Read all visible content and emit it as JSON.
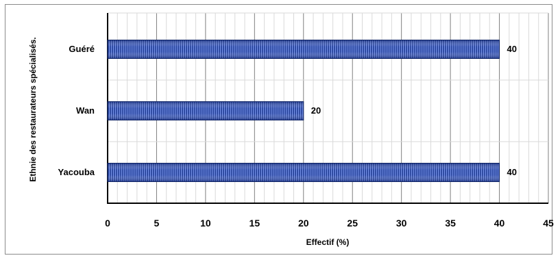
{
  "chart_data": {
    "type": "bar",
    "orientation": "horizontal",
    "title": "",
    "xlabel": "Effectif (%)",
    "ylabel": "Ethnie des restaurateurs spécialisés.",
    "categories": [
      "Guéré",
      "Wan",
      "Yacouba"
    ],
    "values": [
      40,
      20,
      40
    ],
    "data_labels": [
      "40",
      "20",
      "40"
    ],
    "xlim": [
      0,
      45
    ],
    "xticks": [
      0,
      5,
      10,
      15,
      20,
      25,
      30,
      35,
      40,
      45
    ],
    "xtick_labels": [
      "0",
      "5",
      "10",
      "15",
      "20",
      "25",
      "30",
      "35",
      "40",
      "45"
    ],
    "grid": true,
    "legend": "none",
    "bar_color": "#1f3f9e",
    "bar_stripe_color": "#5a7ee0"
  }
}
